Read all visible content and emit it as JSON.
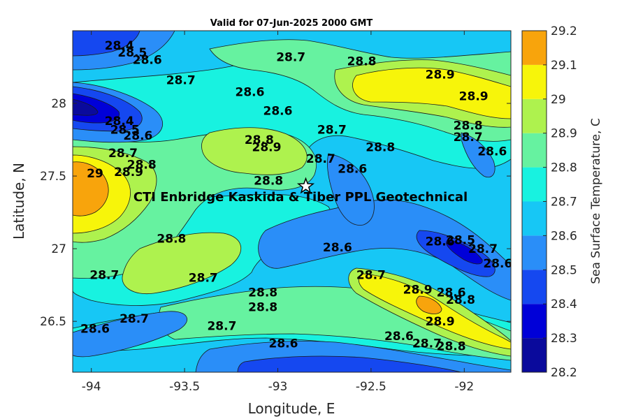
{
  "chart_data": {
    "type": "contour",
    "title": "Valid for 07-Jun-2025 2000 GMT",
    "xlabel": "Longitude, E",
    "ylabel": "Latitude, N",
    "xlim": [
      -94.1,
      -91.75
    ],
    "ylim": [
      26.15,
      28.5
    ],
    "xticks": [
      -94,
      -93.5,
      -93,
      -92.5,
      -92
    ],
    "yticks": [
      26.5,
      27,
      27.5,
      28
    ],
    "colorbar": {
      "label": "Sea Surface Temperature, C",
      "levels": [
        28.2,
        28.3,
        28.4,
        28.5,
        28.6,
        28.7,
        28.8,
        28.9,
        29,
        29.1,
        29.2
      ],
      "colors": [
        "#0a0a9c",
        "#0000d8",
        "#1548f0",
        "#2a8ef8",
        "#17c7f5",
        "#18f2e0",
        "#66f2a0",
        "#aef24e",
        "#f7f50a",
        "#f8a40c",
        "#f56a0a"
      ]
    },
    "annotation": "CTI Enbridge  Kaskida & Tiber PPL Geotechnical",
    "marker": {
      "type": "star",
      "lon": -92.85,
      "lat": 27.43
    },
    "contour_labels": [
      {
        "text": "28.4",
        "lon": -93.85,
        "lat": 28.4
      },
      {
        "text": "28.5",
        "lon": -93.78,
        "lat": 28.35
      },
      {
        "text": "28.6",
        "lon": -93.7,
        "lat": 28.3
      },
      {
        "text": "28.7",
        "lon": -93.52,
        "lat": 28.16
      },
      {
        "text": "28.6",
        "lon": -93.15,
        "lat": 28.08
      },
      {
        "text": "28.7",
        "lon": -92.93,
        "lat": 28.32
      },
      {
        "text": "28.8",
        "lon": -92.55,
        "lat": 28.29
      },
      {
        "text": "28.9",
        "lon": -92.13,
        "lat": 28.2
      },
      {
        "text": "28.9",
        "lon": -91.95,
        "lat": 28.05
      },
      {
        "text": "28.6",
        "lon": -93.0,
        "lat": 27.95
      },
      {
        "text": "28.4",
        "lon": -93.85,
        "lat": 27.88
      },
      {
        "text": "28.5",
        "lon": -93.82,
        "lat": 27.82
      },
      {
        "text": "28.6",
        "lon": -93.75,
        "lat": 27.78
      },
      {
        "text": "28.7",
        "lon": -93.83,
        "lat": 27.66
      },
      {
        "text": "28.8",
        "lon": -93.73,
        "lat": 27.58
      },
      {
        "text": "28.9",
        "lon": -93.8,
        "lat": 27.53
      },
      {
        "text": "29",
        "lon": -93.98,
        "lat": 27.52
      },
      {
        "text": "28.8",
        "lon": -93.1,
        "lat": 27.75
      },
      {
        "text": "28.9",
        "lon": -93.06,
        "lat": 27.7
      },
      {
        "text": "28.7",
        "lon": -92.71,
        "lat": 27.82
      },
      {
        "text": "28.7",
        "lon": -92.77,
        "lat": 27.62
      },
      {
        "text": "28.6",
        "lon": -92.6,
        "lat": 27.55
      },
      {
        "text": "28.8",
        "lon": -92.45,
        "lat": 27.7
      },
      {
        "text": "28.8",
        "lon": -91.98,
        "lat": 27.85
      },
      {
        "text": "28.7",
        "lon": -91.98,
        "lat": 27.77
      },
      {
        "text": "28.6",
        "lon": -91.85,
        "lat": 27.67
      },
      {
        "text": "28.8",
        "lon": -93.05,
        "lat": 27.47
      },
      {
        "text": "28.8",
        "lon": -93.57,
        "lat": 27.07
      },
      {
        "text": "28.6",
        "lon": -92.68,
        "lat": 27.01
      },
      {
        "text": "28.6",
        "lon": -92.13,
        "lat": 27.05
      },
      {
        "text": "28.5",
        "lon": -92.02,
        "lat": 27.06
      },
      {
        "text": "28.7",
        "lon": -91.9,
        "lat": 27.0
      },
      {
        "text": "28.6",
        "lon": -91.82,
        "lat": 26.9
      },
      {
        "text": "28.7",
        "lon": -93.93,
        "lat": 26.82
      },
      {
        "text": "28.7",
        "lon": -93.4,
        "lat": 26.8
      },
      {
        "text": "28.7",
        "lon": -92.5,
        "lat": 26.82
      },
      {
        "text": "28.9",
        "lon": -92.25,
        "lat": 26.72
      },
      {
        "text": "28.6",
        "lon": -92.07,
        "lat": 26.7
      },
      {
        "text": "28.8",
        "lon": -92.02,
        "lat": 26.65
      },
      {
        "text": "28.8",
        "lon": -93.08,
        "lat": 26.7
      },
      {
        "text": "28.8",
        "lon": -93.08,
        "lat": 26.6
      },
      {
        "text": "28.9",
        "lon": -92.13,
        "lat": 26.5
      },
      {
        "text": "28.6",
        "lon": -93.98,
        "lat": 26.45
      },
      {
        "text": "28.7",
        "lon": -93.77,
        "lat": 26.52
      },
      {
        "text": "28.7",
        "lon": -93.3,
        "lat": 26.47
      },
      {
        "text": "28.6",
        "lon": -92.97,
        "lat": 26.35
      },
      {
        "text": "28.6",
        "lon": -92.35,
        "lat": 26.4
      },
      {
        "text": "28.7",
        "lon": -92.2,
        "lat": 26.35
      },
      {
        "text": "28.8",
        "lon": -92.07,
        "lat": 26.33
      }
    ]
  }
}
